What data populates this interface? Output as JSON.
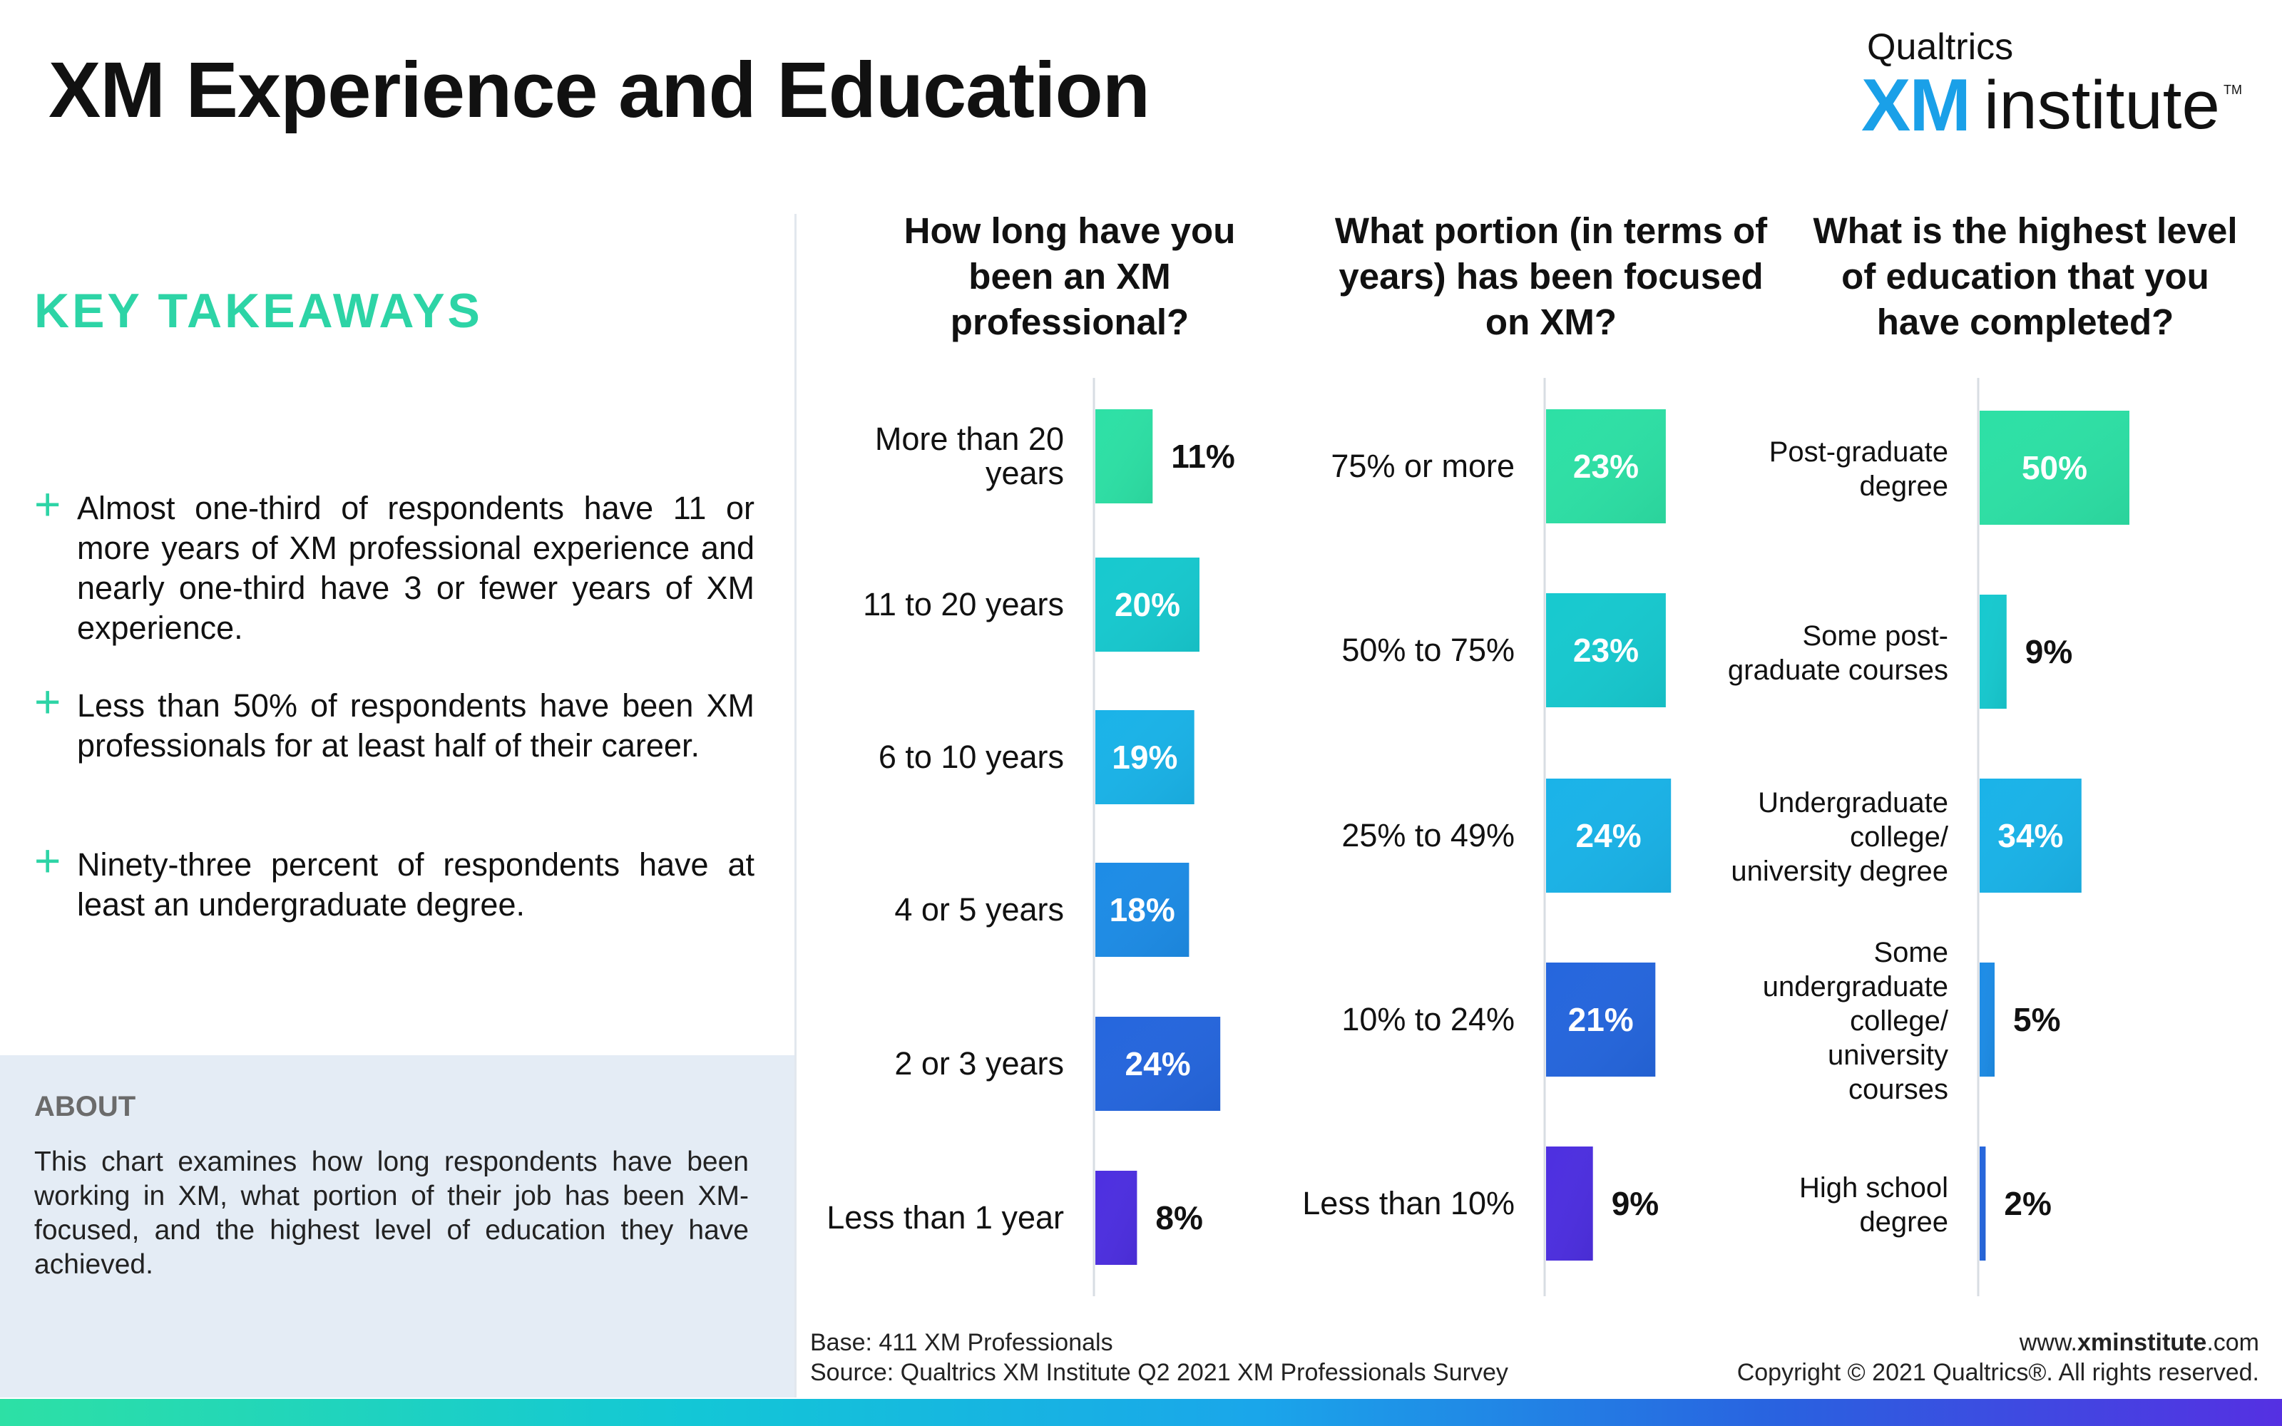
{
  "title": "XM Experience and Education",
  "logo": {
    "top": "Qualtrics",
    "xm": "XM",
    "institute": "institute",
    "tm": "TM"
  },
  "key_takeaways": {
    "title": "KEY TAKEAWAYS",
    "bullets": [
      "Almost one-third of respondents have 11 or more years of XM professional experience and nearly one-third have 3 or fewer years of XM experience.",
      "Less than 50% of respondents have been XM professionals for at least half of their career.",
      "Ninety-three percent of respondents have at least an undergraduate degree."
    ]
  },
  "about": {
    "title": "ABOUT",
    "text": "This chart examines how long respondents have been working in XM, what portion of their job has been XM-focused, and the highest level of education they have achieved."
  },
  "footer": {
    "base": "Base: 411 XM Professionals",
    "source": "Source: Qualtrics XM Institute Q2 2021 XM Professionals Survey",
    "url_prefix": "www.",
    "url_bold": "xminstitute",
    "url_suffix": ".com",
    "copyright": "Copyright © 2021 Qualtrics®. All rights reserved."
  },
  "colors": {
    "gradient": [
      "#2de0a5",
      "#17c9cf",
      "#1ab3e8",
      "#1d8ce6",
      "#2566dd",
      "#4d2fe0"
    ],
    "accent": "#2dd4a6"
  },
  "chart_data": [
    {
      "type": "bar",
      "orientation": "horizontal",
      "title": "How long have you been an XM professional?",
      "categories": [
        "More than 20 years",
        "11 to 20 years",
        "6 to 10 years",
        "4 or 5 years",
        "2 or 3 years",
        "Less than 1 year"
      ],
      "values": [
        11,
        20,
        19,
        18,
        24,
        8
      ],
      "labels": [
        "11%",
        "20%",
        "19%",
        "18%",
        "24%",
        "8%"
      ],
      "unit": "%"
    },
    {
      "type": "bar",
      "orientation": "horizontal",
      "title": "What portion (in terms of years) has been focused on XM?",
      "categories": [
        "75% or more",
        "50% to 75%",
        "25% to 49%",
        "10% to 24%",
        "Less than 10%"
      ],
      "values": [
        23,
        23,
        24,
        21,
        9
      ],
      "labels": [
        "23%",
        "23%",
        "24%",
        "21%",
        "9%"
      ],
      "unit": "%"
    },
    {
      "type": "bar",
      "orientation": "horizontal",
      "title": "What is the highest level of education that you have completed?",
      "categories": [
        "Post-graduate degree",
        "Some post-graduate courses",
        "Undergraduate college/ university degree",
        "Some undergraduate college/ university courses",
        "High school degree"
      ],
      "values": [
        50,
        9,
        34,
        5,
        2
      ],
      "labels": [
        "50%",
        "9%",
        "34%",
        "5%",
        "2%"
      ],
      "unit": "%"
    }
  ]
}
